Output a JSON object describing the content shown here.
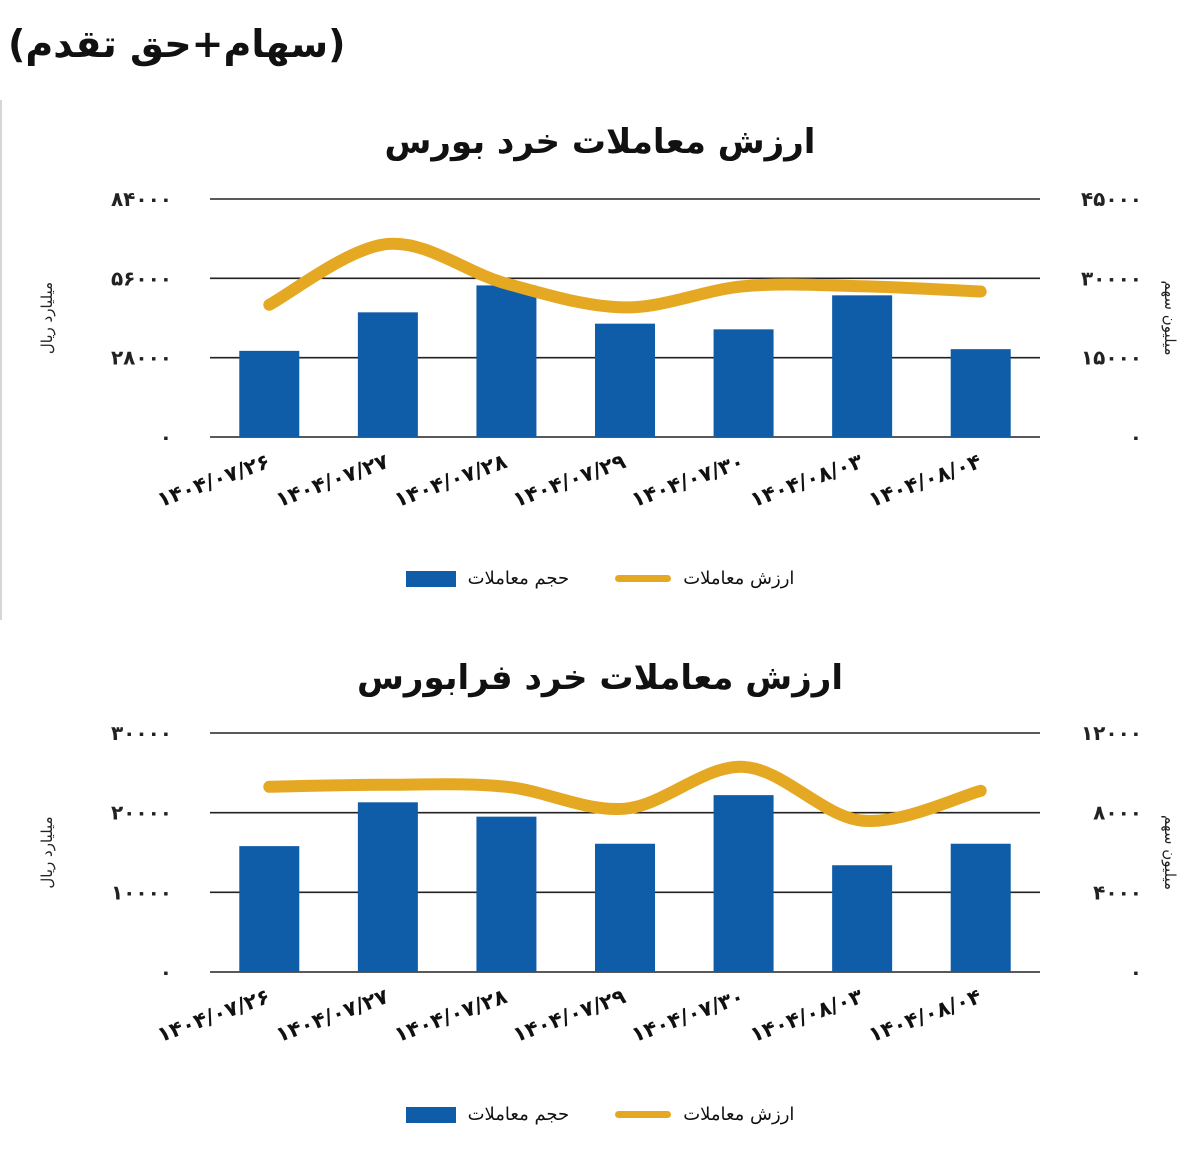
{
  "page_title": "(سهام+حق تقدم)",
  "colors": {
    "bars": "#0f5ca8",
    "line": "#e5a823",
    "grid": "#222222"
  },
  "chart_data": [
    {
      "type": "bar",
      "title": "ارزش معاملات خرد بورس",
      "categories": [
        "1404/07/26",
        "1404/07/27",
        "1404/07/28",
        "1404/07/29",
        "1404/07/30",
        "1404/08/03",
        "1404/08/04"
      ],
      "series": [
        {
          "name": "حجم معاملات",
          "type": "bar",
          "axis": "left",
          "values": [
            30400,
            44000,
            53500,
            40000,
            38000,
            50000,
            31000
          ]
        },
        {
          "name": "ارزش معاملات",
          "type": "line",
          "axis": "right",
          "values": [
            25000,
            36500,
            29000,
            24500,
            28500,
            28500,
            27500
          ]
        }
      ],
      "y_left": {
        "label": "میلیارد ریال",
        "ticks": [
          "۸۴۰۰۰",
          "۵۶۰۰۰",
          "۲۸۰۰۰",
          "۰"
        ],
        "ylim": [
          0,
          84000
        ]
      },
      "y_right": {
        "label": "میلیون سهم",
        "ticks": [
          "۴۵۰۰۰",
          "۳۰۰۰۰",
          "۱۵۰۰۰",
          "۰"
        ],
        "ylim": [
          0,
          45000
        ]
      },
      "x_tick_labels": [
        "۱۴۰۴/۰۷/۲۶",
        "۱۴۰۴/۰۷/۲۷",
        "۱۴۰۴/۰۷/۲۸",
        "۱۴۰۴/۰۷/۲۹",
        "۱۴۰۴/۰۷/۳۰",
        "۱۴۰۴/۰۸/۰۳",
        "۱۴۰۴/۰۸/۰۴"
      ],
      "grid": true,
      "legend": "bottom"
    },
    {
      "type": "bar",
      "title": "ارزش معاملات خرد فرابورس",
      "categories": [
        "1404/07/26",
        "1404/07/27",
        "1404/07/28",
        "1404/07/29",
        "1404/07/30",
        "1404/08/03",
        "1404/08/04"
      ],
      "series": [
        {
          "name": "حجم معاملات",
          "type": "bar",
          "axis": "left",
          "values": [
            15800,
            21300,
            19500,
            16100,
            22200,
            13400,
            16100
          ]
        },
        {
          "name": "ارزش معاملات",
          "type": "line",
          "axis": "right",
          "values": [
            9300,
            9400,
            9300,
            8200,
            10300,
            7600,
            9100
          ]
        }
      ],
      "y_left": {
        "label": "میلیارد ریال",
        "ticks": [
          "۳۰۰۰۰",
          "۲۰۰۰۰",
          "۱۰۰۰۰",
          "۰"
        ],
        "ylim": [
          0,
          30000
        ]
      },
      "y_right": {
        "label": "میلیون سهم",
        "ticks": [
          "۱۲۰۰۰",
          "۸۰۰۰",
          "۴۰۰۰",
          "۰"
        ],
        "ylim": [
          0,
          12000
        ]
      },
      "x_tick_labels": [
        "۱۴۰۴/۰۷/۲۶",
        "۱۴۰۴/۰۷/۲۷",
        "۱۴۰۴/۰۷/۲۸",
        "۱۴۰۴/۰۷/۲۹",
        "۱۴۰۴/۰۷/۳۰",
        "۱۴۰۴/۰۸/۰۳",
        "۱۴۰۴/۰۸/۰۴"
      ],
      "grid": true,
      "legend": "bottom"
    }
  ]
}
